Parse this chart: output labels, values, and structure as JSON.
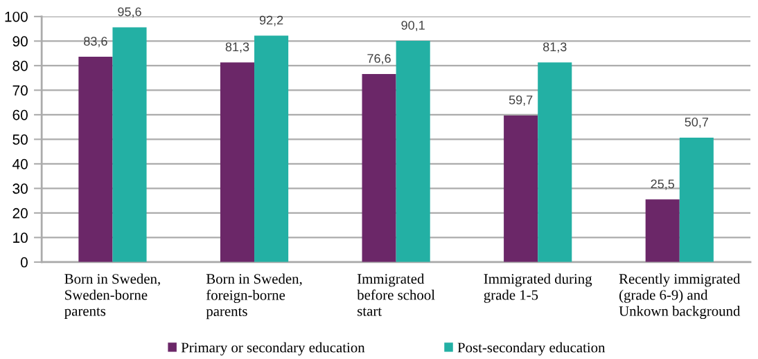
{
  "chart_data": {
    "type": "bar",
    "categories": [
      "Born in Sweden,\nSweden-borne\nparents",
      "Born in Sweden,\nforeign-borne\nparents",
      "Immigrated\nbefore school\nstart",
      "Immigrated during\ngrade 1-5",
      "Recently immigrated\n(grade 6-9) and\nUnkown background"
    ],
    "series": [
      {
        "name": "Primary or secondary education",
        "color": "#6b2768",
        "values": [
          83.6,
          81.3,
          76.6,
          59.7,
          25.5
        ],
        "value_labels": [
          "83,6",
          "81,3",
          "76,6",
          "59,7",
          "25,5"
        ]
      },
      {
        "name": "Post-secondary education",
        "color": "#23b0a4",
        "values": [
          95.6,
          92.2,
          90.1,
          81.3,
          50.7
        ],
        "value_labels": [
          "95,6",
          "92,2",
          "90,1",
          "81,3",
          "50,7"
        ]
      }
    ],
    "ylim": [
      0,
      100
    ],
    "yticks": [
      0,
      10,
      20,
      30,
      40,
      50,
      60,
      70,
      80,
      90,
      100
    ],
    "grid": "y",
    "legend": "bottom"
  }
}
